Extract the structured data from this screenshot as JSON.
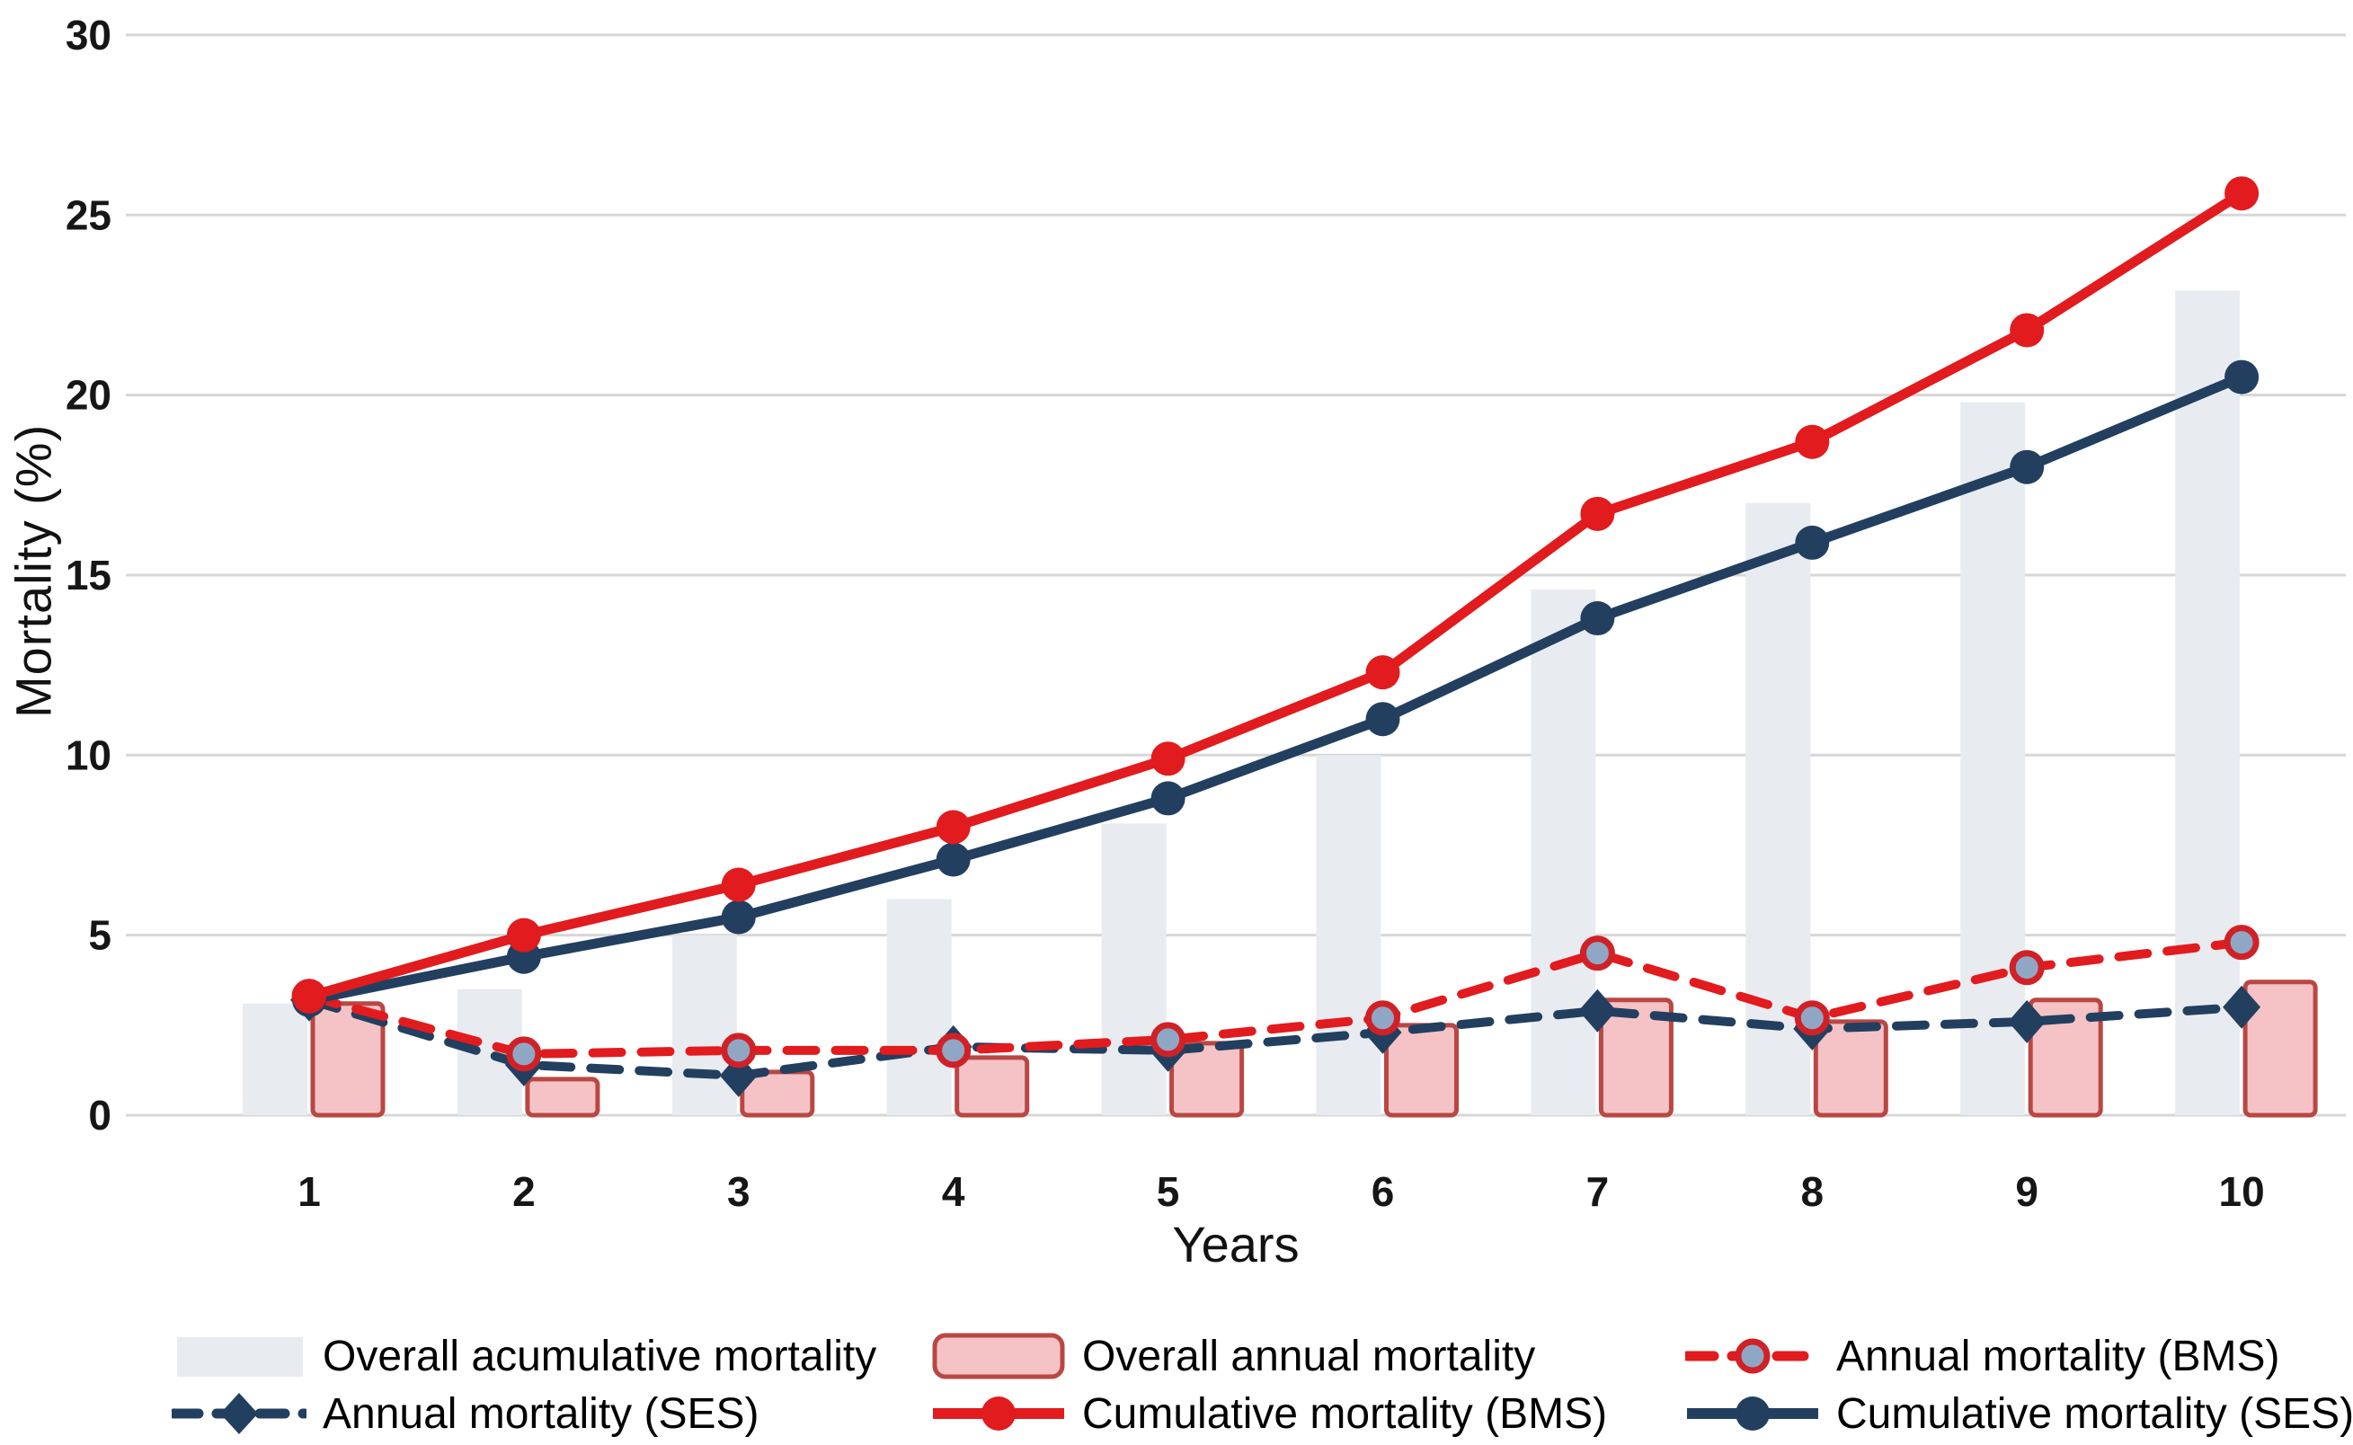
{
  "chart_data": {
    "type": "combo-bar-line",
    "title": "",
    "xlabel": "Years",
    "ylabel": "Mortality (%)",
    "x": [
      1,
      2,
      3,
      4,
      5,
      6,
      7,
      8,
      9,
      10
    ],
    "ylim": [
      0,
      30
    ],
    "yticks": [
      0,
      5,
      10,
      15,
      20,
      25,
      30
    ],
    "grid": "horizontal",
    "legend_position": "bottom",
    "legend_rows": [
      [
        0,
        1,
        2
      ],
      [
        3,
        4,
        5
      ]
    ],
    "colors": {
      "gray_bar": "#e8ebf0",
      "pink_bar_fill": "#f5c3c5",
      "pink_bar_border": "#b94743",
      "red": "#e11b1e",
      "navy": "#233f5f",
      "red_dash_marker_fill": "#8fa7c4",
      "gridline": "#d7d7d7",
      "tick_text": "#161616"
    },
    "series": [
      {
        "name": "Overall acumulative mortality",
        "type": "bar",
        "color": "#e8ebf0",
        "values": [
          3.1,
          3.5,
          5.0,
          6.0,
          8.1,
          10.0,
          14.6,
          17.0,
          19.8,
          22.9
        ]
      },
      {
        "name": "Overall annual mortality",
        "type": "bar",
        "color": "#f5c3c5",
        "border": "#b94743",
        "values": [
          3.1,
          1.0,
          1.2,
          1.6,
          2.0,
          2.5,
          3.2,
          2.6,
          3.2,
          3.7
        ]
      },
      {
        "name": "Annual mortality (BMS)",
        "type": "line",
        "style": "dashed",
        "color": "#e11b1e",
        "marker": "circle-steel",
        "values": [
          3.3,
          1.7,
          1.8,
          1.8,
          2.1,
          2.7,
          4.5,
          2.7,
          4.1,
          4.8
        ]
      },
      {
        "name": "Annual mortality (SES)",
        "type": "line",
        "style": "dashed",
        "color": "#233f5f",
        "marker": "diamond",
        "values": [
          3.2,
          1.4,
          1.1,
          1.9,
          1.8,
          2.3,
          2.9,
          2.4,
          2.6,
          3.0
        ]
      },
      {
        "name": "Cumulative mortality (BMS)",
        "type": "line",
        "style": "solid",
        "color": "#e11b1e",
        "marker": "circle",
        "values": [
          3.3,
          5.0,
          6.4,
          8.0,
          9.9,
          12.3,
          16.7,
          18.7,
          21.8,
          25.6
        ]
      },
      {
        "name": "Cumulative mortality (SES)",
        "type": "line",
        "style": "solid",
        "color": "#233f5f",
        "marker": "circle",
        "values": [
          3.2,
          4.4,
          5.5,
          7.1,
          8.8,
          11.0,
          13.8,
          15.9,
          18.0,
          20.5
        ]
      }
    ]
  }
}
